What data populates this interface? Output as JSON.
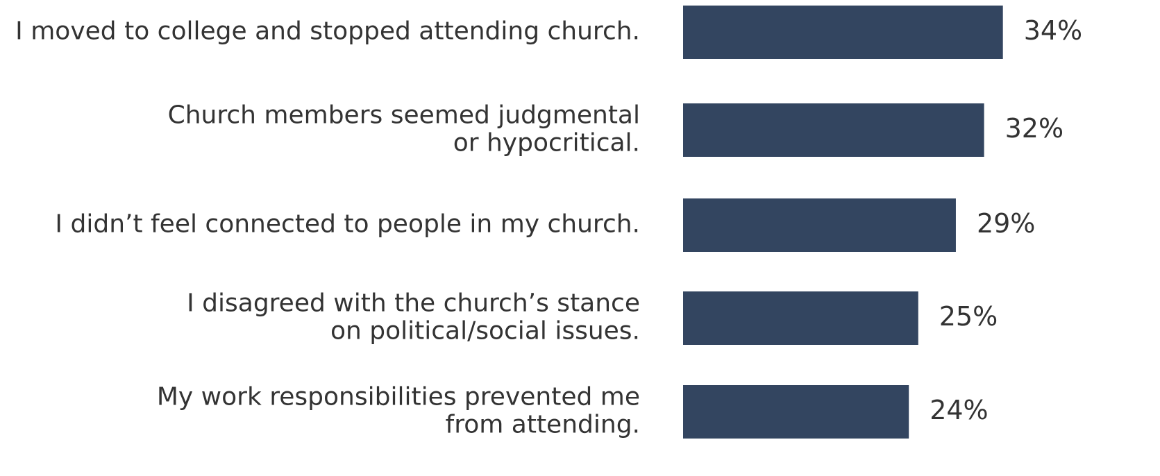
{
  "chart_data": {
    "type": "bar",
    "orientation": "horizontal",
    "categories": [
      [
        "I moved to college and stopped attending church."
      ],
      [
        "Church members seemed judgmental",
        "or hypocritical."
      ],
      [
        "I didn’t feel connected to people in my church."
      ],
      [
        "I disagreed with the church’s stance",
        "on political/social issues."
      ],
      [
        "My work responsibilities prevented me",
        "from attending."
      ]
    ],
    "values": [
      34,
      32,
      29,
      25,
      24
    ],
    "value_labels": [
      "34%",
      "32%",
      "29%",
      "25%",
      "24%"
    ],
    "unit": "%",
    "bar_color": "#334560",
    "text_color": "#333333",
    "grid": false,
    "legend": "none",
    "axes_visible": false
  }
}
